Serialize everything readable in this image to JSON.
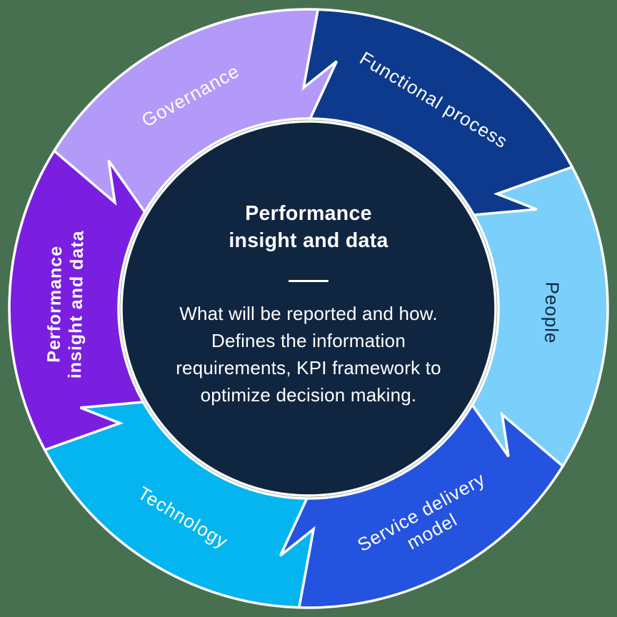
{
  "background_color": "#477050",
  "diagram": {
    "type": "cycle",
    "direction": "clockwise",
    "outline_color": "#ffffff",
    "center": {
      "bg_color": "#102540",
      "text_color": "#ffffff",
      "title_lines": [
        "Performance",
        "insight and data"
      ],
      "divider": "horizontal-rule",
      "description_lines": [
        "What will be reported and how.",
        "Defines the information",
        "requirements, KPI framework to",
        "optimize decision making."
      ]
    },
    "segments": [
      {
        "id": "functional-process",
        "label": "Functional process",
        "lines": [
          "Functional process"
        ],
        "color": "#0d3a8d",
        "text_color": "#ffffff",
        "bold": false,
        "start_angle": 1,
        "end_angle": 61,
        "font_size": 26
      },
      {
        "id": "people",
        "label": "People",
        "lines": [
          "People"
        ],
        "color": "#7ad0fa",
        "text_color": "#102540",
        "bold": false,
        "start_angle": 61,
        "end_angle": 121,
        "font_size": 26
      },
      {
        "id": "service-delivery-model",
        "label": "Service delivery model",
        "lines": [
          "Service delivery",
          "model"
        ],
        "color": "#2453df",
        "text_color": "#ffffff",
        "bold": false,
        "start_angle": 121,
        "end_angle": 181,
        "font_size": 26
      },
      {
        "id": "technology",
        "label": "Technology",
        "lines": [
          "Technology"
        ],
        "color": "#04b5f0",
        "text_color": "#ffffff",
        "bold": false,
        "start_angle": 181,
        "end_angle": 241,
        "font_size": 26
      },
      {
        "id": "performance-insight-and-data",
        "label": "Performance insight and data",
        "lines": [
          "Performance",
          "insight and data"
        ],
        "color": "#7a1fe0",
        "text_color": "#ffffff",
        "bold": true,
        "start_angle": 241,
        "end_angle": 301,
        "font_size": 25
      },
      {
        "id": "governance",
        "label": "Governance",
        "lines": [
          "Governance"
        ],
        "color": "#b399f8",
        "text_color": "#ffffff",
        "bold": false,
        "start_angle": 301,
        "end_angle": 361,
        "font_size": 26
      }
    ]
  }
}
